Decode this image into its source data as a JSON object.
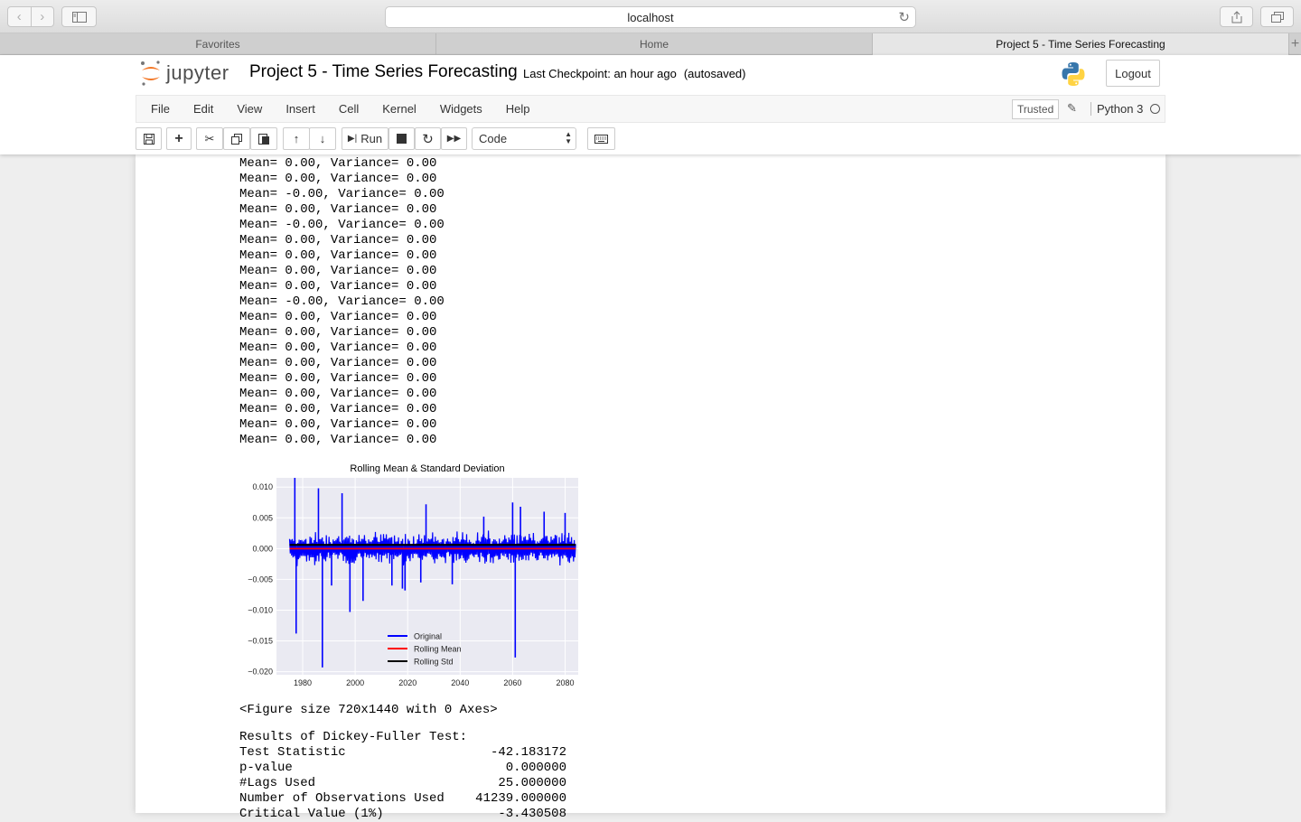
{
  "browser": {
    "address": "localhost",
    "tabs": [
      {
        "label": "Favorites"
      },
      {
        "label": "Home"
      },
      {
        "label": "Project 5 - Time Series Forecasting"
      }
    ]
  },
  "header": {
    "logo_text": "jupyter",
    "notebook_title": "Project 5 - Time Series Forecasting",
    "checkpoint": "Last Checkpoint: an hour ago",
    "autosaved": "(autosaved)",
    "logout_label": "Logout"
  },
  "menu": {
    "items": [
      "File",
      "Edit",
      "View",
      "Insert",
      "Cell",
      "Kernel",
      "Widgets",
      "Help"
    ],
    "trusted": "Trusted",
    "kernel": "Python 3"
  },
  "toolbar": {
    "run_label": "Run",
    "cell_type": "Code"
  },
  "output": {
    "lines": [
      "Mean= 0.00, Variance= 0.00",
      "Mean= 0.00, Variance= 0.00",
      "Mean= -0.00, Variance= 0.00",
      "Mean= 0.00, Variance= 0.00",
      "Mean= -0.00, Variance= 0.00",
      "Mean= 0.00, Variance= 0.00",
      "Mean= 0.00, Variance= 0.00",
      "Mean= 0.00, Variance= 0.00",
      "Mean= 0.00, Variance= 0.00",
      "Mean= -0.00, Variance= 0.00",
      "Mean= 0.00, Variance= 0.00",
      "Mean= 0.00, Variance= 0.00",
      "Mean= 0.00, Variance= 0.00",
      "Mean= 0.00, Variance= 0.00",
      "Mean= 0.00, Variance= 0.00",
      "Mean= 0.00, Variance= 0.00",
      "Mean= 0.00, Variance= 0.00",
      "Mean= 0.00, Variance= 0.00",
      "Mean= 0.00, Variance= 0.00"
    ],
    "figure_text": "<Figure size 720x1440 with 0 Axes>",
    "df_title": "Results of Dickey-Fuller Test:",
    "df_rows": [
      {
        "label": "Test Statistic",
        "value": "-42.183172"
      },
      {
        "label": "p-value",
        "value": "0.000000"
      },
      {
        "label": "#Lags Used",
        "value": "25.000000"
      },
      {
        "label": "Number of Observations Used",
        "value": "41239.000000"
      },
      {
        "label": "Critical Value (1%)",
        "value": "-3.430508"
      }
    ]
  },
  "chart_data": {
    "type": "line",
    "title": "Rolling Mean & Standard Deviation",
    "xlabel": "",
    "ylabel": "",
    "xlim": [
      1970,
      2085
    ],
    "ylim": [
      -0.0205,
      0.0115
    ],
    "x_ticks": [
      1980,
      2000,
      2020,
      2040,
      2060,
      2080
    ],
    "y_ticks": [
      0.01,
      0.005,
      0.0,
      -0.005,
      -0.01,
      -0.015,
      -0.02
    ],
    "y_tick_labels": [
      "0.010",
      "0.005",
      "0.000",
      "−0.005",
      "−0.010",
      "−0.015",
      "−0.020"
    ],
    "grid": true,
    "legend_placement": "lower-center",
    "series": [
      {
        "name": "Original",
        "color": "#0000ff",
        "x_range": [
          1975,
          2084
        ],
        "band": [
          -0.003,
          0.003
        ],
        "spikes": [
          [
            1977,
            0.0115
          ],
          [
            1977.5,
            -0.0138
          ],
          [
            1986,
            0.0098
          ],
          [
            1987.5,
            -0.0193
          ],
          [
            1991,
            -0.006
          ],
          [
            1995,
            0.009
          ],
          [
            1998,
            -0.0103
          ],
          [
            2003,
            -0.0085
          ],
          [
            2014,
            -0.006
          ],
          [
            2018,
            -0.0065
          ],
          [
            2019,
            -0.0068
          ],
          [
            2025,
            -0.0055
          ],
          [
            2027,
            0.0072
          ],
          [
            2037,
            -0.0058
          ],
          [
            2049,
            0.0052
          ],
          [
            2060,
            0.0075
          ],
          [
            2061,
            -0.0177
          ],
          [
            2063,
            0.0068
          ],
          [
            2072,
            0.006
          ],
          [
            2080,
            0.0058
          ]
        ]
      },
      {
        "name": "Rolling Mean",
        "color": "#ff0000",
        "x_range": [
          1975,
          2084
        ],
        "value": 0.0
      },
      {
        "name": "Rolling Std",
        "color": "#000000",
        "x_range": [
          1975,
          2084
        ],
        "value": 0.0006
      }
    ]
  }
}
